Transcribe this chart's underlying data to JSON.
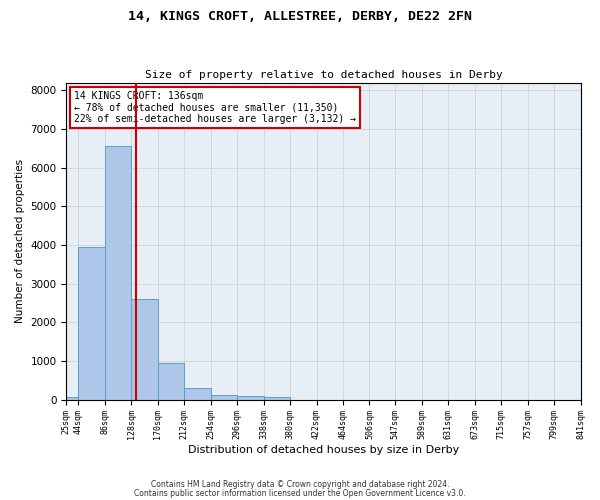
{
  "title1": "14, KINGS CROFT, ALLESTREE, DERBY, DE22 2FN",
  "title2": "Size of property relative to detached houses in Derby",
  "xlabel": "Distribution of detached houses by size in Derby",
  "ylabel": "Number of detached properties",
  "bar_edges": [
    25,
    44,
    86,
    128,
    170,
    212,
    254,
    296,
    338,
    380,
    422,
    464,
    506,
    547,
    589,
    631,
    673,
    715,
    757,
    799,
    841
  ],
  "bar_heights": [
    70,
    3950,
    6550,
    2600,
    950,
    300,
    130,
    100,
    80,
    0,
    0,
    0,
    0,
    0,
    0,
    0,
    0,
    0,
    0,
    0
  ],
  "bar_color": "#aec6e8",
  "bar_edge_color": "#5a9ecf",
  "grid_color": "#cccccc",
  "bg_color": "#e8eef5",
  "vline_x": 136,
  "vline_color": "#cc0000",
  "annotation_line1": "14 KINGS CROFT: 136sqm",
  "annotation_line2": "← 78% of detached houses are smaller (11,350)",
  "annotation_line3": "22% of semi-detached houses are larger (3,132) →",
  "annotation_box_color": "#ffffff",
  "annotation_border_color": "#cc0000",
  "ylim": [
    0,
    8200
  ],
  "yticks": [
    0,
    1000,
    2000,
    3000,
    4000,
    5000,
    6000,
    7000,
    8000
  ],
  "tick_labels": [
    "25sqm",
    "44sqm",
    "86sqm",
    "128sqm",
    "170sqm",
    "212sqm",
    "254sqm",
    "296sqm",
    "338sqm",
    "380sqm",
    "422sqm",
    "464sqm",
    "506sqm",
    "547sqm",
    "589sqm",
    "631sqm",
    "673sqm",
    "715sqm",
    "757sqm",
    "799sqm",
    "841sqm"
  ],
  "footer1": "Contains HM Land Registry data © Crown copyright and database right 2024.",
  "footer2": "Contains public sector information licensed under the Open Government Licence v3.0."
}
